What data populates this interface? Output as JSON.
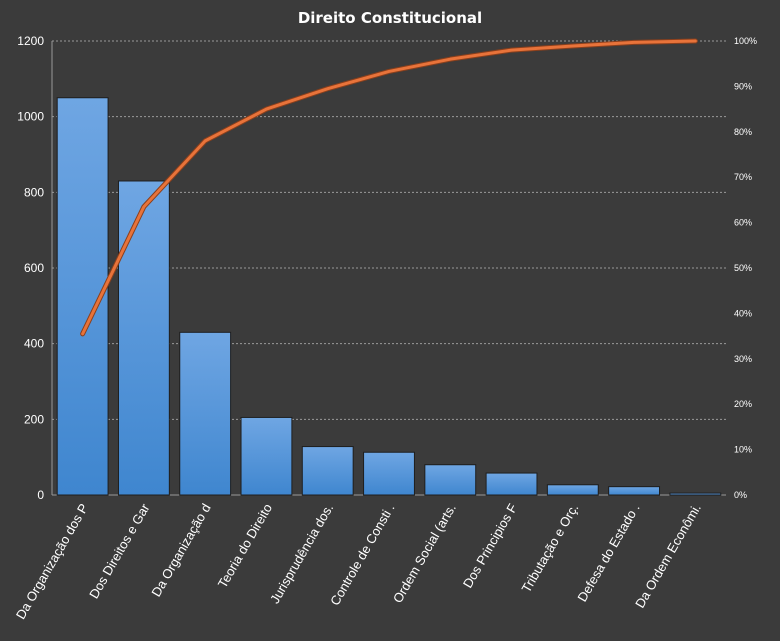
{
  "chart_data": {
    "type": "bar",
    "title": "Direito  Constitucional",
    "categories": [
      "Da Organização dos P",
      "Dos Direitos e Gar",
      "Da Organização d",
      "Teoria do Direito",
      "Jurisprudência dos.",
      "Controle de Consti .",
      "Ordem Social (arts.",
      "Dos Principios F",
      "Tributação e Orç.",
      "Defesa do Estado .",
      "Da Ordem Econômi."
    ],
    "series": [
      {
        "type": "bar",
        "axis": "left",
        "values": [
          1050,
          830,
          430,
          205,
          128,
          113,
          80,
          58,
          27,
          22,
          5
        ],
        "color": "#4a90d9"
      },
      {
        "type": "line",
        "axis": "right",
        "values": [
          35.5,
          63.5,
          78.0,
          85.0,
          89.5,
          93.3,
          96.0,
          98.0,
          98.9,
          99.7,
          100.0
        ],
        "color": "#e8733a"
      }
    ],
    "ylim": [
      0,
      1200
    ],
    "yticks": [
      "0",
      "200",
      "400",
      "600",
      "800",
      "1000",
      "1200"
    ],
    "y2lim": [
      0,
      100
    ],
    "y2ticks": [
      "0%",
      "10%",
      "20%",
      "30%",
      "40%",
      "50%",
      "60%",
      "70%",
      "80%",
      "90%",
      "100%"
    ],
    "grid": true,
    "legend": "none"
  }
}
